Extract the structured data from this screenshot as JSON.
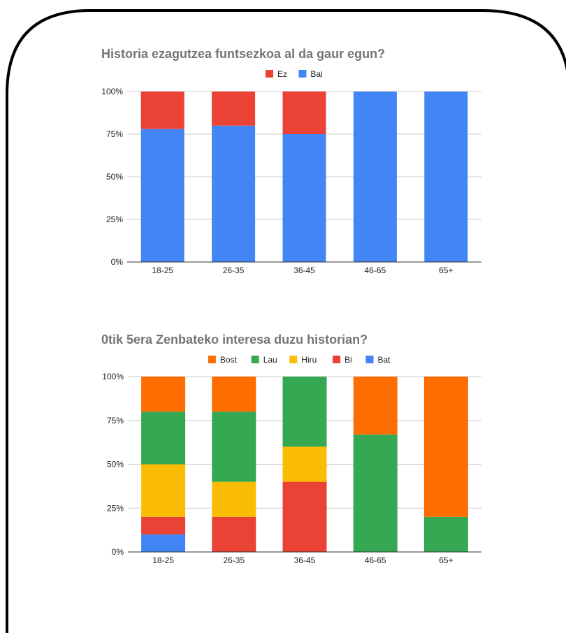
{
  "chart_data": [
    {
      "type": "bar",
      "stacked": "percent",
      "title": "Historia ezagutzea funtsezkoa al da gaur egun?",
      "categories": [
        "18-25",
        "26-35",
        "36-45",
        "46-65",
        "65+"
      ],
      "y_ticks": [
        "0%",
        "25%",
        "50%",
        "75%",
        "100%"
      ],
      "ylim": [
        0,
        100
      ],
      "grid": true,
      "legend_position": "top",
      "legend_order": [
        "Ez",
        "Bai"
      ],
      "series": [
        {
          "name": "Bai",
          "color": "#4285f4",
          "values": [
            78,
            80,
            75,
            100,
            100
          ]
        },
        {
          "name": "Ez",
          "color": "#ea4335",
          "values": [
            22,
            20,
            25,
            0,
            0
          ]
        }
      ]
    },
    {
      "type": "bar",
      "stacked": "percent",
      "title": "0tik 5era Zenbateko interesa duzu historian?",
      "categories": [
        "18-25",
        "26-35",
        "36-45",
        "46-65",
        "65+"
      ],
      "y_ticks": [
        "0%",
        "25%",
        "50%",
        "75%",
        "100%"
      ],
      "ylim": [
        0,
        100
      ],
      "grid": true,
      "legend_position": "top",
      "legend_order": [
        "Bost",
        "Lau",
        "Hiru",
        "Bi",
        "Bat"
      ],
      "series": [
        {
          "name": "Bat",
          "color": "#4285f4",
          "values": [
            10,
            0,
            0,
            0,
            0
          ]
        },
        {
          "name": "Bi",
          "color": "#ea4335",
          "values": [
            10,
            20,
            40,
            0,
            0
          ]
        },
        {
          "name": "Hiru",
          "color": "#fbbc04",
          "values": [
            30,
            20,
            20,
            0,
            0
          ]
        },
        {
          "name": "Lau",
          "color": "#34a853",
          "values": [
            30,
            40,
            40,
            67,
            20
          ]
        },
        {
          "name": "Bost",
          "color": "#ff6d01",
          "values": [
            20,
            20,
            0,
            33,
            80
          ]
        }
      ]
    }
  ]
}
